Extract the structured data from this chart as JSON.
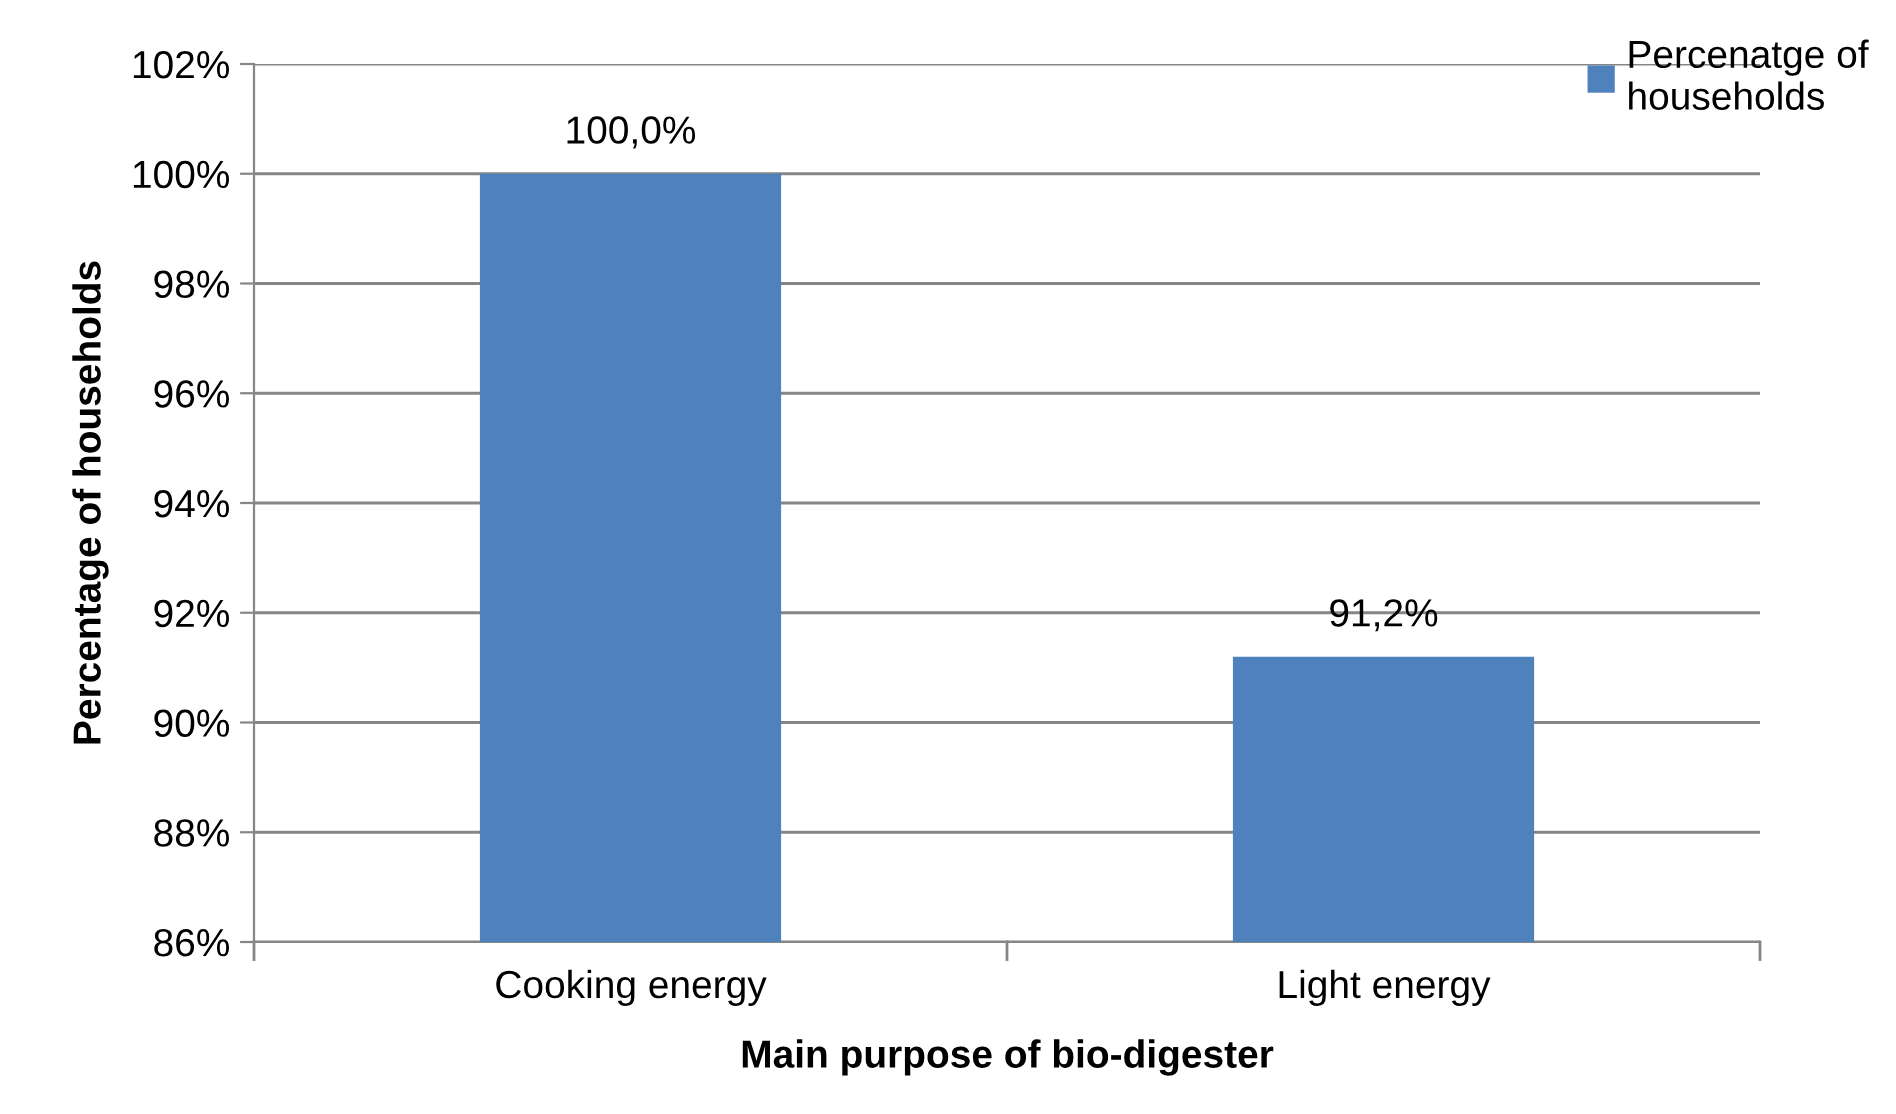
{
  "chart_data": {
    "type": "bar",
    "xlabel": "Main purpose of bio-digester",
    "ylabel": "Percentage of households",
    "categories": [
      "Cooking energy",
      "Light energy"
    ],
    "series": [
      {
        "name": "Percenatge of households",
        "color": "#4f81bd",
        "values": [
          100.0,
          91.2
        ],
        "value_labels": [
          "100,0%",
          "91,2%"
        ]
      }
    ],
    "ylim": [
      86,
      102
    ],
    "yticks": [
      {
        "value": 86,
        "label": "86%"
      },
      {
        "value": 88,
        "label": "88%"
      },
      {
        "value": 90,
        "label": "90%"
      },
      {
        "value": 92,
        "label": "92%"
      },
      {
        "value": 94,
        "label": "94%"
      },
      {
        "value": 96,
        "label": "96%"
      },
      {
        "value": 98,
        "label": "98%"
      },
      {
        "value": 100,
        "label": "100%"
      },
      {
        "value": 102,
        "label": "102%"
      }
    ],
    "grid": "y",
    "legend": "top right"
  }
}
